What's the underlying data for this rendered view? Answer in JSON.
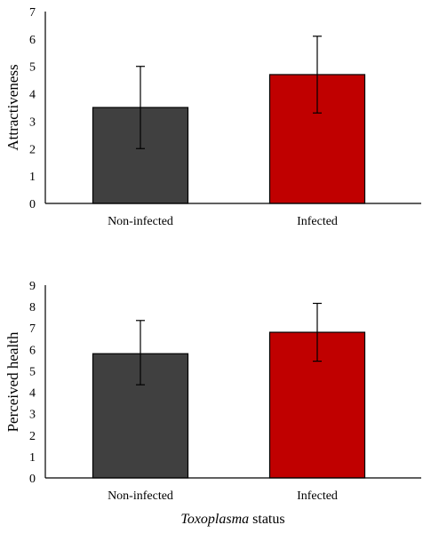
{
  "chart_data": [
    {
      "type": "bar",
      "categories": [
        "Non-infected",
        "Infected"
      ],
      "values": [
        3.5,
        4.7
      ],
      "error_low": [
        2.0,
        3.3
      ],
      "error_high": [
        5.0,
        6.1
      ],
      "colors": [
        "#404040",
        "#c00000"
      ],
      "ylabel": "Attractiveness",
      "xlabel": "",
      "ylim": [
        0,
        7
      ],
      "yticks": [
        "0",
        "1",
        "2",
        "3",
        "4",
        "5",
        "6",
        "7"
      ],
      "grid": false,
      "legend": "none"
    },
    {
      "type": "bar",
      "categories": [
        "Non-infected",
        "Infected"
      ],
      "values": [
        5.8,
        6.8
      ],
      "error_low": [
        4.35,
        5.45
      ],
      "error_high": [
        7.35,
        8.15
      ],
      "colors": [
        "#404040",
        "#c00000"
      ],
      "ylabel": "Perceived health",
      "xlabel_italic": "Toxoplasma",
      "xlabel_rest": " status",
      "ylim": [
        0,
        9
      ],
      "yticks": [
        "0",
        "1",
        "2",
        "3",
        "4",
        "5",
        "6",
        "7",
        "8",
        "9"
      ],
      "grid": false,
      "legend": "none"
    }
  ]
}
